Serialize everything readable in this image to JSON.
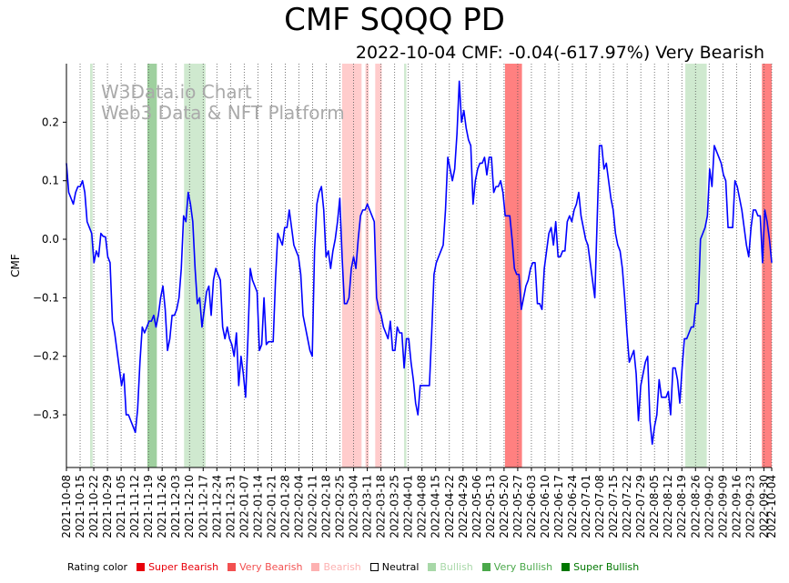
{
  "chart_data": {
    "type": "line",
    "title": "CMF SQQQ PD",
    "subtitle": "2022-10-04 CMF: -0.04(-617.97%) Very Bearish",
    "ylabel": "CMF",
    "xlabel": "",
    "ylim": [
      -0.39,
      0.3
    ],
    "y_ticks": [
      0.2,
      0.1,
      0.0,
      -0.1,
      -0.2,
      -0.3
    ],
    "y_tick_labels": [
      "0.2",
      "0.1",
      "0.0",
      "−0.1",
      "−0.2",
      "−0.3"
    ],
    "x_start": "2021-10-08",
    "x_end": "2022-10-04",
    "x_tick_labels": [
      "2021-10-08",
      "2021-10-15",
      "2021-10-22",
      "2021-10-29",
      "2021-11-05",
      "2021-11-12",
      "2021-11-19",
      "2021-11-26",
      "2021-12-03",
      "2021-12-10",
      "2021-12-17",
      "2021-12-24",
      "2021-12-31",
      "2022-01-07",
      "2022-01-14",
      "2022-01-21",
      "2022-01-28",
      "2022-02-04",
      "2022-02-11",
      "2022-02-18",
      "2022-02-25",
      "2022-03-04",
      "2022-03-11",
      "2022-03-18",
      "2022-03-25",
      "2022-04-01",
      "2022-04-08",
      "2022-04-15",
      "2022-04-22",
      "2022-04-29",
      "2022-05-06",
      "2022-05-13",
      "2022-05-20",
      "2022-05-27",
      "2022-06-03",
      "2022-06-10",
      "2022-06-17",
      "2022-06-24",
      "2022-07-01",
      "2022-07-08",
      "2022-07-15",
      "2022-07-22",
      "2022-07-29",
      "2022-08-05",
      "2022-08-12",
      "2022-08-19",
      "2022-08-26",
      "2022-09-02",
      "2022-09-09",
      "2022-09-16",
      "2022-09-23",
      "2022-09-30",
      "2022-10-04"
    ],
    "series": [
      {
        "name": "CMF",
        "color": "#0000ff",
        "values": [
          0.13,
          0.08,
          0.07,
          0.06,
          0.08,
          0.09,
          0.09,
          0.1,
          0.08,
          0.03,
          0.02,
          0.01,
          -0.04,
          -0.02,
          -0.03,
          0.01,
          0.005,
          0.004,
          -0.03,
          -0.04,
          -0.14,
          -0.16,
          -0.19,
          -0.22,
          -0.25,
          -0.23,
          -0.3,
          -0.3,
          -0.31,
          -0.32,
          -0.33,
          -0.29,
          -0.21,
          -0.15,
          -0.16,
          -0.15,
          -0.14,
          -0.14,
          -0.13,
          -0.15,
          -0.13,
          -0.1,
          -0.08,
          -0.12,
          -0.19,
          -0.17,
          -0.13,
          -0.13,
          -0.12,
          -0.1,
          -0.05,
          0.04,
          0.03,
          0.08,
          0.06,
          0.03,
          -0.05,
          -0.11,
          -0.1,
          -0.15,
          -0.12,
          -0.09,
          -0.08,
          -0.13,
          -0.07,
          -0.05,
          -0.06,
          -0.07,
          -0.15,
          -0.17,
          -0.15,
          -0.17,
          -0.18,
          -0.2,
          -0.16,
          -0.25,
          -0.2,
          -0.23,
          -0.27,
          -0.17,
          -0.05,
          -0.07,
          -0.08,
          -0.09,
          -0.19,
          -0.18,
          -0.1,
          -0.18,
          -0.175,
          -0.175,
          -0.175,
          -0.07,
          0.01,
          0.0,
          -0.01,
          0.02,
          0.02,
          0.05,
          0.02,
          -0.01,
          -0.02,
          -0.03,
          -0.06,
          -0.13,
          -0.15,
          -0.17,
          -0.19,
          -0.2,
          -0.02,
          0.06,
          0.08,
          0.09,
          0.05,
          -0.03,
          -0.02,
          -0.05,
          -0.02,
          0.0,
          0.03,
          0.07,
          -0.03,
          -0.11,
          -0.11,
          -0.1,
          -0.05,
          -0.03,
          -0.05,
          0.0,
          0.04,
          0.05,
          0.05,
          0.06,
          0.05,
          0.04,
          0.03,
          -0.1,
          -0.12,
          -0.13,
          -0.15,
          -0.16,
          -0.17,
          -0.14,
          -0.19,
          -0.19,
          -0.15,
          -0.16,
          -0.16,
          -0.22,
          -0.17,
          -0.17,
          -0.21,
          -0.24,
          -0.28,
          -0.3,
          -0.25,
          -0.25,
          -0.25,
          -0.25,
          -0.25,
          -0.16,
          -0.06,
          -0.04,
          -0.03,
          -0.02,
          -0.01,
          0.05,
          0.14,
          0.12,
          0.1,
          0.12,
          0.18,
          0.27,
          0.2,
          0.22,
          0.19,
          0.17,
          0.16,
          0.06,
          0.1,
          0.12,
          0.13,
          0.13,
          0.14,
          0.11,
          0.14,
          0.14,
          0.08,
          0.09,
          0.09,
          0.1,
          0.08,
          0.04,
          0.04,
          0.04,
          0.0,
          -0.05,
          -0.06,
          -0.06,
          -0.12,
          -0.1,
          -0.08,
          -0.07,
          -0.05,
          -0.04,
          -0.04,
          -0.11,
          -0.11,
          -0.12,
          -0.05,
          -0.02,
          0.01,
          0.02,
          -0.01,
          0.03,
          -0.03,
          -0.03,
          -0.02,
          -0.02,
          0.03,
          0.04,
          0.03,
          0.05,
          0.06,
          0.08,
          0.04,
          0.02,
          0.0,
          -0.01,
          -0.04,
          -0.07,
          -0.1,
          0.03,
          0.16,
          0.16,
          0.12,
          0.13,
          0.1,
          0.07,
          0.05,
          0.01,
          -0.01,
          -0.02,
          -0.05,
          -0.1,
          -0.16,
          -0.21,
          -0.2,
          -0.19,
          -0.23,
          -0.31,
          -0.25,
          -0.23,
          -0.21,
          -0.2,
          -0.31,
          -0.35,
          -0.32,
          -0.3,
          -0.24,
          -0.27,
          -0.27,
          -0.27,
          -0.26,
          -0.3,
          -0.22,
          -0.22,
          -0.24,
          -0.28,
          -0.22,
          -0.17,
          -0.17,
          -0.16,
          -0.15,
          -0.15,
          -0.11,
          -0.11,
          0.0,
          0.01,
          0.02,
          0.04,
          0.12,
          0.09,
          0.16,
          0.15,
          0.14,
          0.13,
          0.11,
          0.1,
          0.02,
          0.02,
          0.02,
          0.1,
          0.09,
          0.07,
          0.05,
          0.02,
          -0.01,
          -0.03,
          0.02,
          0.05,
          0.05,
          0.04,
          0.04,
          -0.04,
          0.05,
          0.03,
          0.0,
          -0.04
        ]
      }
    ],
    "rating_bands": [
      {
        "start": 0.0335,
        "end": 0.0371,
        "rating": "Bullish"
      },
      {
        "start": 0.1147,
        "end": 0.1282,
        "rating": "Very Bullish"
      },
      {
        "start": 0.1668,
        "end": 0.1972,
        "rating": "Bullish"
      },
      {
        "start": 0.3908,
        "end": 0.4185,
        "rating": "Bearish"
      },
      {
        "start": 0.424,
        "end": 0.4286,
        "rating": "Bearish"
      },
      {
        "start": 0.4378,
        "end": 0.447,
        "rating": "Bearish"
      },
      {
        "start": 0.4788,
        "end": 0.482,
        "rating": "Bullish"
      },
      {
        "start": 0.6218,
        "end": 0.6459,
        "rating": "Very Bearish"
      },
      {
        "start": 0.8775,
        "end": 0.9079,
        "rating": "Bullish"
      },
      {
        "start": 0.9862,
        "end": 1.0,
        "rating": "Very Bearish"
      }
    ],
    "watermark": [
      "W3Data.io Chart",
      "Web3 Data & NFT Platform"
    ],
    "legend_title": "Rating color",
    "legend": [
      {
        "label": "Super Bearish",
        "color": "#e8000b"
      },
      {
        "label": "Very Bearish",
        "color": "#f25050"
      },
      {
        "label": "Bearish",
        "color": "#fdb1b1"
      },
      {
        "label": "Neutral",
        "color": "#ffffff",
        "text_color": "#000000"
      },
      {
        "label": "Bullish",
        "color": "#a8d8a8"
      },
      {
        "label": "Very Bullish",
        "color": "#4aa84a"
      },
      {
        "label": "Super Bullish",
        "color": "#007700"
      }
    ],
    "band_colors": {
      "Super Bearish": "#ff4444",
      "Very Bearish": "#ff8080",
      "Bearish": "#ffcccc",
      "Bullish": "#cfe9cf",
      "Very Bullish": "#9fd09f",
      "Super Bullish": "#4caf50"
    }
  }
}
